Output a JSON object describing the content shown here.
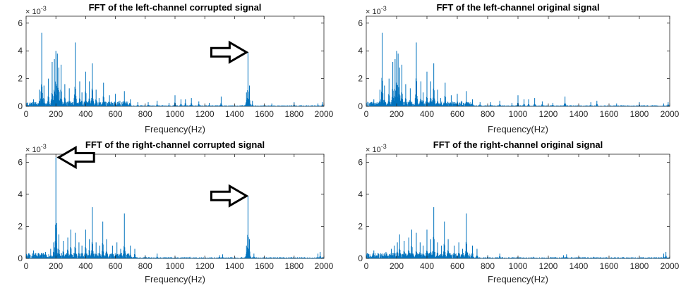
{
  "chart_data": [
    {
      "type": "line",
      "title": "FFT of the left-channel corrupted signal",
      "xlabel": "Frequency(Hz)",
      "ylabel": "",
      "y_exponent": "× 10^-3",
      "y_exponent_base": "× 10",
      "y_exponent_power": "-3",
      "xlim": [
        0,
        2000
      ],
      "ylim": [
        0,
        6.5
      ],
      "xticks": [
        "0",
        "200",
        "400",
        "600",
        "800",
        "1000",
        "1200",
        "1400",
        "1600",
        "1800",
        "2000"
      ],
      "yticks": [
        "0",
        "2",
        "4",
        "6"
      ],
      "color": "#0072BD",
      "grid": false,
      "peaks": [
        [
          50,
          0.5
        ],
        [
          90,
          1.2
        ],
        [
          105,
          5.3
        ],
        [
          120,
          1.5
        ],
        [
          150,
          2.0
        ],
        [
          175,
          3.2
        ],
        [
          190,
          3.4
        ],
        [
          200,
          4.0
        ],
        [
          210,
          3.8
        ],
        [
          220,
          2.8
        ],
        [
          235,
          3.0
        ],
        [
          260,
          1.6
        ],
        [
          290,
          1.3
        ],
        [
          330,
          4.6
        ],
        [
          360,
          1.8
        ],
        [
          375,
          1.0
        ],
        [
          400,
          2.5
        ],
        [
          425,
          1.8
        ],
        [
          445,
          3.1
        ],
        [
          470,
          1.2
        ],
        [
          490,
          0.6
        ],
        [
          520,
          1.7
        ],
        [
          560,
          0.8
        ],
        [
          600,
          0.9
        ],
        [
          630,
          0.4
        ],
        [
          660,
          1.1
        ],
        [
          700,
          0.5
        ],
        [
          750,
          0.3
        ],
        [
          820,
          0.3
        ],
        [
          880,
          0.4
        ],
        [
          960,
          0.25
        ],
        [
          1000,
          0.8
        ],
        [
          1040,
          0.5
        ],
        [
          1070,
          0.5
        ],
        [
          1110,
          0.6
        ],
        [
          1160,
          0.35
        ],
        [
          1230,
          0.25
        ],
        [
          1310,
          0.7
        ],
        [
          1480,
          1.0
        ],
        [
          1490,
          3.9
        ],
        [
          1500,
          1.5
        ],
        [
          1520,
          0.4
        ],
        [
          1650,
          0.2
        ],
        [
          1800,
          0.3
        ],
        [
          1960,
          0.2
        ],
        [
          1990,
          0.3
        ]
      ]
    },
    {
      "type": "line",
      "title": "FFT of the left-channel original signal",
      "xlabel": "Frequency(Hz)",
      "ylabel": "",
      "y_exponent": "× 10^-3",
      "y_exponent_base": "× 10",
      "y_exponent_power": "-3",
      "xlim": [
        0,
        2000
      ],
      "ylim": [
        0,
        6.5
      ],
      "xticks": [
        "0",
        "200",
        "400",
        "600",
        "800",
        "1000",
        "1200",
        "1400",
        "1600",
        "1800",
        "2000"
      ],
      "yticks": [
        "0",
        "2",
        "4",
        "6"
      ],
      "color": "#0072BD",
      "grid": false,
      "peaks": [
        [
          50,
          0.5
        ],
        [
          90,
          1.2
        ],
        [
          105,
          5.3
        ],
        [
          120,
          1.5
        ],
        [
          150,
          2.0
        ],
        [
          175,
          3.2
        ],
        [
          190,
          3.4
        ],
        [
          200,
          4.0
        ],
        [
          210,
          3.8
        ],
        [
          220,
          2.8
        ],
        [
          235,
          3.0
        ],
        [
          260,
          1.6
        ],
        [
          290,
          1.3
        ],
        [
          330,
          4.6
        ],
        [
          360,
          1.8
        ],
        [
          375,
          1.0
        ],
        [
          400,
          2.5
        ],
        [
          425,
          1.8
        ],
        [
          445,
          3.1
        ],
        [
          470,
          1.2
        ],
        [
          490,
          0.6
        ],
        [
          520,
          1.7
        ],
        [
          560,
          0.8
        ],
        [
          600,
          0.9
        ],
        [
          630,
          0.4
        ],
        [
          660,
          1.1
        ],
        [
          700,
          0.5
        ],
        [
          750,
          0.3
        ],
        [
          820,
          0.3
        ],
        [
          880,
          0.4
        ],
        [
          960,
          0.25
        ],
        [
          1000,
          0.8
        ],
        [
          1040,
          0.5
        ],
        [
          1070,
          0.5
        ],
        [
          1110,
          0.6
        ],
        [
          1160,
          0.35
        ],
        [
          1230,
          0.25
        ],
        [
          1310,
          0.7
        ],
        [
          1480,
          0.3
        ],
        [
          1520,
          0.4
        ],
        [
          1650,
          0.2
        ],
        [
          1800,
          0.3
        ],
        [
          1960,
          0.2
        ],
        [
          1990,
          0.3
        ]
      ]
    },
    {
      "type": "line",
      "title": "FFT of the right-channel corrupted signal",
      "xlabel": "Frequency(Hz)",
      "ylabel": "",
      "y_exponent": "× 10^-3",
      "y_exponent_base": "× 10",
      "y_exponent_power": "-3",
      "xlim": [
        0,
        2000
      ],
      "ylim": [
        0,
        6.5
      ],
      "xticks": [
        "0",
        "200",
        "400",
        "600",
        "800",
        "1000",
        "1200",
        "1400",
        "1600",
        "1800",
        "2000"
      ],
      "yticks": [
        "0",
        "2",
        "4",
        "6"
      ],
      "color": "#0072BD",
      "grid": false,
      "peaks": [
        [
          50,
          0.5
        ],
        [
          130,
          0.4
        ],
        [
          165,
          0.6
        ],
        [
          185,
          1.0
        ],
        [
          200,
          6.3
        ],
        [
          205,
          2.2
        ],
        [
          220,
          1.5
        ],
        [
          250,
          1.1
        ],
        [
          280,
          1.3
        ],
        [
          300,
          1.8
        ],
        [
          330,
          1.6
        ],
        [
          355,
          1.0
        ],
        [
          375,
          0.8
        ],
        [
          400,
          1.8
        ],
        [
          425,
          1.2
        ],
        [
          445,
          3.2
        ],
        [
          470,
          1.0
        ],
        [
          495,
          0.8
        ],
        [
          515,
          2.3
        ],
        [
          540,
          1.2
        ],
        [
          580,
          0.8
        ],
        [
          610,
          1.0
        ],
        [
          635,
          0.6
        ],
        [
          660,
          2.8
        ],
        [
          700,
          0.8
        ],
        [
          730,
          0.6
        ],
        [
          800,
          0.2
        ],
        [
          880,
          0.3
        ],
        [
          1000,
          0.1
        ],
        [
          1100,
          0.1
        ],
        [
          1300,
          0.2
        ],
        [
          1320,
          0.25
        ],
        [
          1480,
          0.8
        ],
        [
          1490,
          3.9
        ],
        [
          1500,
          1.2
        ],
        [
          1530,
          0.3
        ],
        [
          1960,
          0.3
        ],
        [
          1975,
          0.4
        ]
      ]
    },
    {
      "type": "line",
      "title": "FFT of the right-channel original signal",
      "xlabel": "Frequency(Hz)",
      "ylabel": "",
      "y_exponent": "× 10^-3",
      "y_exponent_base": "× 10",
      "y_exponent_power": "-3",
      "xlim": [
        0,
        2000
      ],
      "ylim": [
        0,
        6.5
      ],
      "xticks": [
        "0",
        "200",
        "400",
        "600",
        "800",
        "1000",
        "1200",
        "1400",
        "1600",
        "1800",
        "2000"
      ],
      "yticks": [
        "0",
        "2",
        "4",
        "6"
      ],
      "color": "#0072BD",
      "grid": false,
      "peaks": [
        [
          50,
          0.5
        ],
        [
          130,
          0.4
        ],
        [
          165,
          0.6
        ],
        [
          185,
          0.8
        ],
        [
          205,
          1.0
        ],
        [
          220,
          1.5
        ],
        [
          250,
          1.1
        ],
        [
          280,
          1.3
        ],
        [
          300,
          1.8
        ],
        [
          330,
          1.6
        ],
        [
          355,
          1.0
        ],
        [
          375,
          0.8
        ],
        [
          400,
          1.8
        ],
        [
          425,
          1.2
        ],
        [
          445,
          3.2
        ],
        [
          470,
          1.0
        ],
        [
          495,
          0.8
        ],
        [
          515,
          2.3
        ],
        [
          540,
          1.2
        ],
        [
          580,
          0.8
        ],
        [
          610,
          1.0
        ],
        [
          635,
          0.6
        ],
        [
          660,
          2.8
        ],
        [
          700,
          0.8
        ],
        [
          730,
          0.6
        ],
        [
          800,
          0.2
        ],
        [
          880,
          0.3
        ],
        [
          1000,
          0.1
        ],
        [
          1100,
          0.1
        ],
        [
          1300,
          0.2
        ],
        [
          1320,
          0.25
        ],
        [
          1500,
          0.1
        ],
        [
          1960,
          0.3
        ],
        [
          1975,
          0.4
        ]
      ]
    }
  ],
  "annotations": [
    {
      "chart": 0,
      "direction": "right",
      "x": 1490,
      "y": 3.9
    },
    {
      "chart": 2,
      "direction": "left",
      "x": 200,
      "y": 6.3
    },
    {
      "chart": 2,
      "direction": "right",
      "x": 1490,
      "y": 3.9
    }
  ]
}
